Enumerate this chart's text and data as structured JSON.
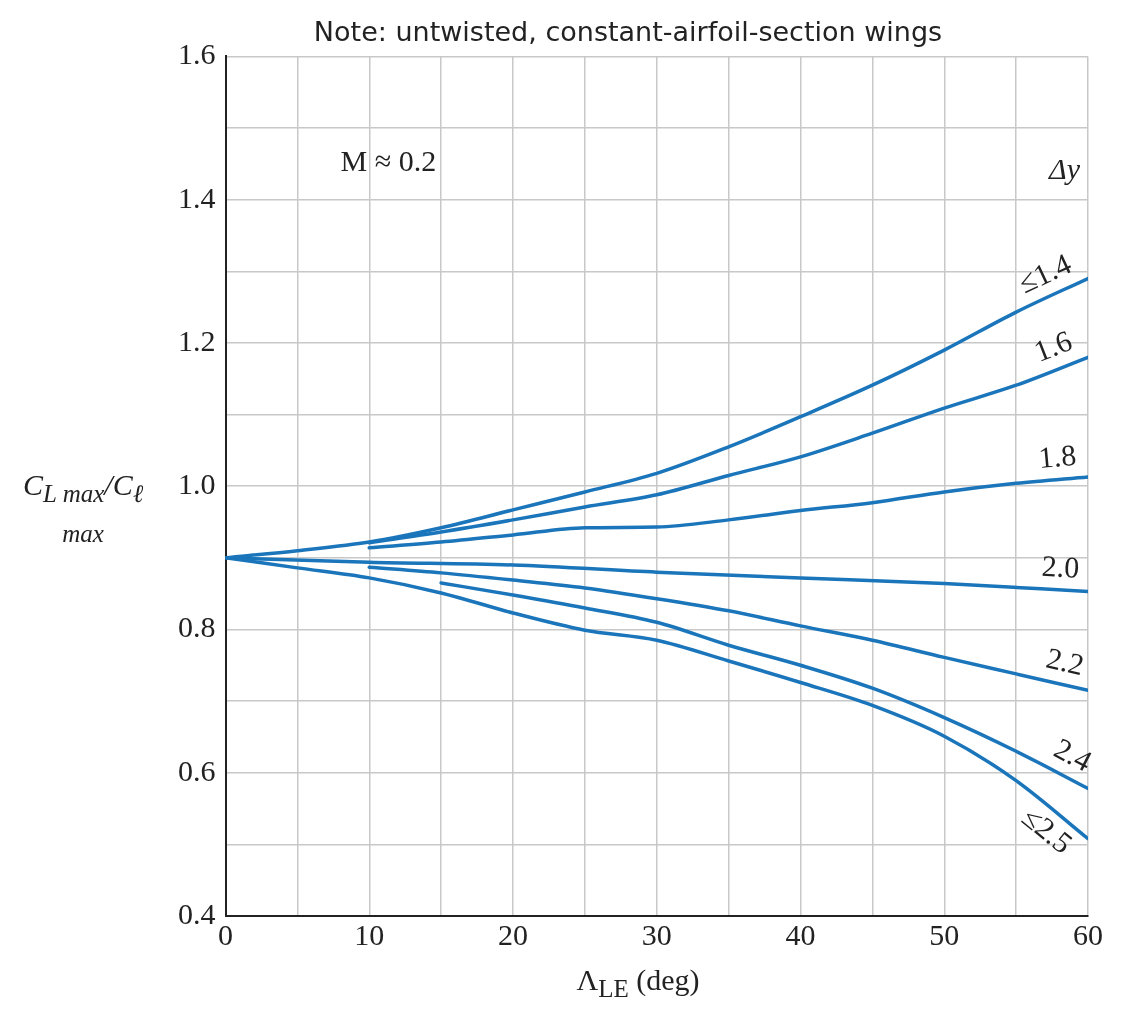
{
  "chart_data": {
    "type": "line",
    "title": "Note: untwisted, constant-airfoil-section wings",
    "xlabel": "Λ$_{LE}$ (deg)",
    "ylabel": "C$_{L max}$/C$_{ℓ max}$",
    "legend_title": "Δy",
    "annotations": [
      "M ≈ 0.2"
    ],
    "xlim": [
      0,
      60
    ],
    "ylim": [
      0.4,
      1.6
    ],
    "xticks": [
      0,
      {
        "value": 5,
        "label": null
      },
      10,
      {
        "value": 15,
        "label": null
      },
      20,
      {
        "value": 25,
        "label": null
      },
      30,
      {
        "value": 35,
        "label": null
      },
      40,
      {
        "value": 45,
        "label": null
      },
      50,
      {
        "value": 55,
        "label": null
      },
      60
    ],
    "yticks": [
      {
        "value": 0.4,
        "label": "0.4"
      },
      {
        "value": 0.5,
        "label": null
      },
      {
        "value": 0.6,
        "label": "0.6"
      },
      {
        "value": 0.7,
        "label": null
      },
      {
        "value": 0.8,
        "label": "0.8"
      },
      {
        "value": 0.9,
        "label": null
      },
      {
        "value": 1.0,
        "label": "1.0"
      },
      {
        "value": 1.1,
        "label": null
      },
      {
        "value": 1.2,
        "label": "1.2"
      },
      {
        "value": 1.3,
        "label": null
      },
      {
        "value": 1.4,
        "label": "1.4"
      },
      {
        "value": 1.5,
        "label": null
      },
      {
        "value": 1.6,
        "label": "1.6"
      }
    ],
    "grid": true,
    "legend": false,
    "marker": "none",
    "line_style": "solid",
    "series": [
      {
        "name": "≤1.4",
        "color": "#1a75bb",
        "x": [
          0,
          5,
          10,
          15,
          20,
          25,
          30,
          35,
          40,
          45,
          50,
          55,
          60
        ],
        "values": [
          0.9,
          0.91,
          0.922,
          0.942,
          0.967,
          0.992,
          1.018,
          1.055,
          1.097,
          1.141,
          1.19,
          1.243,
          1.29
        ]
      },
      {
        "name": "1.6",
        "color": "#1a75bb",
        "x": [
          10,
          15,
          20,
          25,
          30,
          35,
          40,
          45,
          50,
          55,
          60
        ],
        "values": [
          0.921,
          0.936,
          0.953,
          0.971,
          0.988,
          1.015,
          1.041,
          1.074,
          1.109,
          1.141,
          1.18
        ]
      },
      {
        "name": "1.8",
        "color": "#1a75bb",
        "x": [
          10,
          15,
          20,
          25,
          30,
          35,
          40,
          45,
          50,
          55,
          60
        ],
        "values": [
          0.914,
          0.922,
          0.932,
          0.942,
          0.943,
          0.953,
          0.966,
          0.977,
          0.992,
          1.004,
          1.013
        ]
      },
      {
        "name": "2.0",
        "color": "#1a75bb",
        "x": [
          0,
          10,
          20,
          30,
          40,
          50,
          60
        ],
        "values": [
          0.9,
          0.894,
          0.89,
          0.88,
          0.872,
          0.864,
          0.853
        ]
      },
      {
        "name": "2.2",
        "color": "#1a75bb",
        "x": [
          10,
          15,
          20,
          25,
          30,
          35,
          40,
          45,
          50,
          55,
          60
        ],
        "values": [
          0.887,
          0.879,
          0.869,
          0.858,
          0.843,
          0.826,
          0.805,
          0.785,
          0.761,
          0.738,
          0.715
        ]
      },
      {
        "name": "2.4",
        "color": "#1a75bb",
        "x": [
          15,
          20,
          25,
          30,
          35,
          40,
          45,
          50,
          55,
          60
        ],
        "values": [
          0.865,
          0.848,
          0.83,
          0.81,
          0.778,
          0.75,
          0.718,
          0.677,
          0.63,
          0.578
        ]
      },
      {
        "name": "≤2.5",
        "color": "#1a75bb",
        "x": [
          0,
          5,
          10,
          15,
          20,
          25,
          30,
          35,
          40,
          45,
          50,
          55,
          60
        ],
        "values": [
          0.9,
          0.886,
          0.872,
          0.851,
          0.823,
          0.799,
          0.785,
          0.756,
          0.726,
          0.694,
          0.651,
          0.589,
          0.508
        ]
      }
    ]
  }
}
